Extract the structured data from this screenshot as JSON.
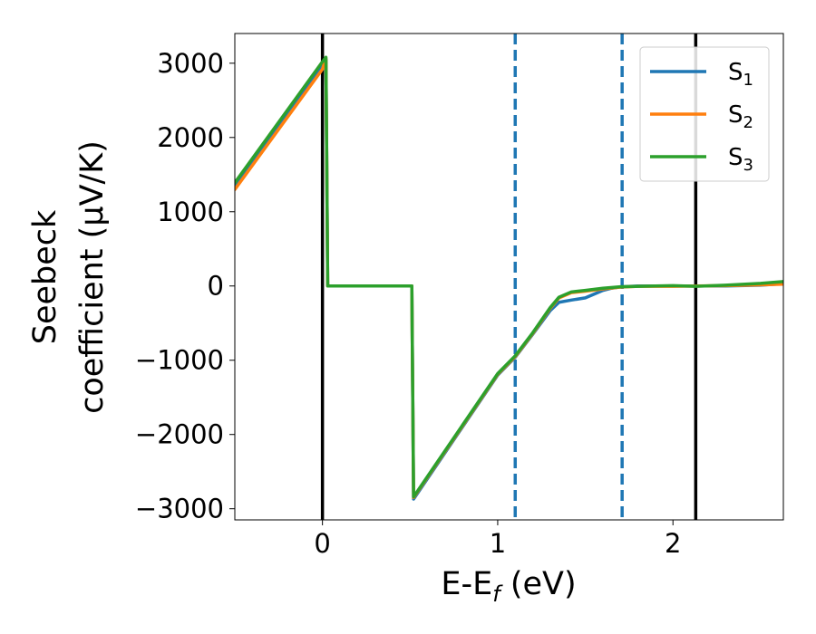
{
  "chart_data": {
    "type": "line",
    "xlabel": {
      "base": "E-E",
      "sub": "f",
      "suffix": " (eV)"
    },
    "ylabel": {
      "line1": "Seebeck",
      "line2": "coefficient  (μV/K)"
    },
    "xlim": [
      -0.5,
      2.63
    ],
    "ylim": [
      -3150,
      3400
    ],
    "xticks": [
      0,
      1,
      2
    ],
    "xtick_labels": [
      "0",
      "1",
      "2"
    ],
    "yticks": [
      3000,
      2000,
      1000,
      0,
      -1000,
      -2000,
      -3000
    ],
    "ytick_labels": [
      "3000",
      "2000",
      "1000",
      "0",
      "−1000",
      "−2000",
      "−3000"
    ],
    "grid": false,
    "legend_position": "top-right",
    "vlines": [
      {
        "x": 0.0,
        "style": "solid",
        "color": "#000000"
      },
      {
        "x": 1.1,
        "style": "dashed",
        "color": "#1f77b4"
      },
      {
        "x": 1.71,
        "style": "dashed",
        "color": "#1f77b4"
      },
      {
        "x": 2.13,
        "style": "solid",
        "color": "#000000"
      }
    ],
    "series": [
      {
        "name": {
          "base": "S",
          "sub": "1"
        },
        "color": "#1f77b4",
        "points": [
          [
            -0.5,
            1340
          ],
          [
            0.0,
            2980
          ],
          [
            0.02,
            3050
          ],
          [
            0.03,
            0
          ],
          [
            0.5,
            0
          ],
          [
            0.51,
            0
          ],
          [
            0.52,
            -2870
          ],
          [
            1.0,
            -1200
          ],
          [
            1.1,
            -960
          ],
          [
            1.2,
            -650
          ],
          [
            1.3,
            -330
          ],
          [
            1.35,
            -220
          ],
          [
            1.42,
            -190
          ],
          [
            1.5,
            -160
          ],
          [
            1.55,
            -110
          ],
          [
            1.6,
            -60
          ],
          [
            1.65,
            -30
          ],
          [
            1.71,
            -10
          ],
          [
            1.8,
            0
          ],
          [
            2.0,
            0
          ],
          [
            2.13,
            0
          ],
          [
            2.3,
            0
          ],
          [
            2.5,
            10
          ],
          [
            2.63,
            30
          ]
        ]
      },
      {
        "name": {
          "base": "S",
          "sub": "2"
        },
        "color": "#ff7f0e",
        "points": [
          [
            -0.5,
            1300
          ],
          [
            0.0,
            2920
          ],
          [
            0.02,
            3060
          ],
          [
            0.03,
            0
          ],
          [
            0.5,
            0
          ],
          [
            0.51,
            0
          ],
          [
            0.52,
            -2850
          ],
          [
            1.0,
            -1190
          ],
          [
            1.1,
            -950
          ],
          [
            1.2,
            -640
          ],
          [
            1.3,
            -300
          ],
          [
            1.35,
            -160
          ],
          [
            1.42,
            -90
          ],
          [
            1.5,
            -70
          ],
          [
            1.6,
            -40
          ],
          [
            1.7,
            -15
          ],
          [
            1.8,
            -5
          ],
          [
            2.0,
            -5
          ],
          [
            2.13,
            0
          ],
          [
            2.3,
            5
          ],
          [
            2.5,
            15
          ],
          [
            2.63,
            25
          ]
        ]
      },
      {
        "name": {
          "base": "S",
          "sub": "3"
        },
        "color": "#2ca02c",
        "points": [
          [
            -0.5,
            1390
          ],
          [
            0.0,
            3020
          ],
          [
            0.02,
            3080
          ],
          [
            0.03,
            0
          ],
          [
            0.5,
            0
          ],
          [
            0.51,
            0
          ],
          [
            0.52,
            -2840
          ],
          [
            1.0,
            -1180
          ],
          [
            1.1,
            -940
          ],
          [
            1.2,
            -630
          ],
          [
            1.3,
            -290
          ],
          [
            1.35,
            -150
          ],
          [
            1.42,
            -80
          ],
          [
            1.5,
            -60
          ],
          [
            1.6,
            -30
          ],
          [
            1.7,
            -10
          ],
          [
            1.9,
            0
          ],
          [
            2.0,
            5
          ],
          [
            2.13,
            -5
          ],
          [
            2.3,
            10
          ],
          [
            2.5,
            35
          ],
          [
            2.63,
            60
          ]
        ]
      }
    ]
  }
}
